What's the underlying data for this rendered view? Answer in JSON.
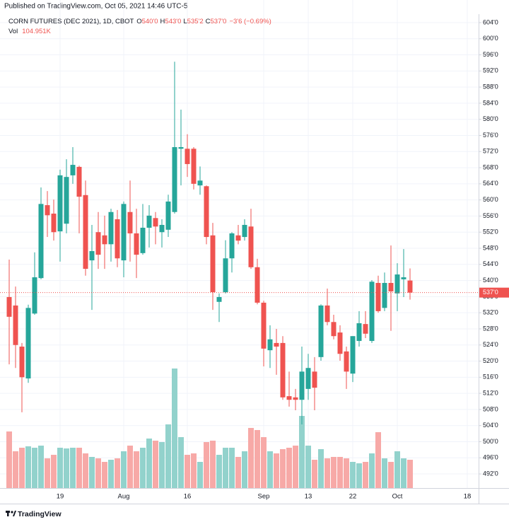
{
  "header": {
    "published": "Published on TradingView.com, Oct 05, 2021 14:46 UTC-5"
  },
  "legend": {
    "symbol": "CORN FUTURES (DEC 2021), 1D, CBOT",
    "ohlc": [
      {
        "key": "O",
        "value": "540'0"
      },
      {
        "key": "H",
        "value": "543'0"
      },
      {
        "key": "L",
        "value": "535'2"
      },
      {
        "key": "C",
        "value": "537'0"
      }
    ],
    "change": "−3'6 (−0.69%)",
    "volume_key": "Vol",
    "volume_value": "104.951K"
  },
  "footer": {
    "brand": "TradingView"
  },
  "chart_data": {
    "type": "candlestick",
    "up_color": "#26a69a",
    "down_color": "#ef5350",
    "volume_up_color": "#92d2cc",
    "volume_down_color": "#f7a9a7",
    "grid": true,
    "categories": [
      null,
      null,
      null,
      null,
      null,
      null,
      null,
      null,
      "19",
      null,
      null,
      null,
      null,
      null,
      null,
      null,
      null,
      null,
      "Aug",
      null,
      null,
      null,
      null,
      null,
      null,
      null,
      null,
      null,
      "16",
      null,
      null,
      null,
      null,
      null,
      null,
      null,
      null,
      null,
      null,
      null,
      "Sep",
      null,
      null,
      null,
      null,
      null,
      null,
      "13",
      null,
      null,
      null,
      null,
      null,
      null,
      "22",
      null,
      null,
      null,
      null,
      null,
      null,
      "Oct",
      null,
      null,
      null,
      null,
      null,
      null,
      null,
      null,
      null,
      null,
      "18",
      null
    ],
    "open": [
      535.9,
      533.8,
      523.6,
      515.7,
      531.8,
      540.6,
      558.7,
      556.6,
      552.2,
      554.1,
      566.1,
      568.2,
      561.2,
      545,
      552,
      551.2,
      549,
      555.2,
      545,
      557,
      551.7,
      546.8,
      553.1,
      555.5,
      552,
      552.6,
      557,
      572.7,
      572.7,
      572.7,
      563.6,
      563.4,
      551.2,
      534.7,
      537.1,
      545.5,
      551.2,
      550.8,
      553.4,
      543.3,
      534.5,
      522.7,
      524.5,
      524.5,
      511.3,
      511,
      510.4,
      513.1,
      517.4,
      521,
      533.8,
      529.7,
      527.1,
      522.4,
      516.9,
      525,
      529.2,
      525,
      539.4,
      533.2,
      539.4,
      536.8,
      540.3,
      540,
      null,
      null,
      null,
      null,
      null,
      null,
      null,
      null,
      null,
      null
    ],
    "high": [
      545.2,
      538.5,
      524.5,
      534,
      547,
      563.1,
      562.2,
      560.1,
      567.5,
      570.1,
      573.1,
      568.5,
      564.8,
      553.8,
      557,
      556.1,
      557.8,
      557.5,
      559.6,
      564.8,
      557.8,
      559,
      558.7,
      557,
      555.2,
      561.3,
      594.3,
      582.4,
      576.3,
      573.1,
      568.3,
      563.6,
      554.3,
      536.8,
      550,
      552,
      553.8,
      555.2,
      557.8,
      545.4,
      535,
      528.9,
      528,
      526.2,
      517.4,
      513.1,
      523.6,
      521.8,
      521,
      534.1,
      538,
      531.5,
      528.9,
      523.6,
      526.2,
      532.4,
      532.4,
      540.1,
      541.2,
      542,
      548.7,
      544.3,
      547.8,
      543,
      null,
      null,
      null,
      null,
      null,
      null,
      null,
      null,
      null,
      null
    ],
    "low": [
      519.2,
      518.3,
      507.3,
      514.6,
      531.5,
      540.3,
      550.8,
      549.9,
      544.7,
      551.7,
      564,
      551.7,
      541.2,
      532.7,
      542.9,
      542.9,
      544.7,
      543.3,
      540.8,
      544.7,
      540.6,
      546.4,
      548.2,
      549,
      548.2,
      550.8,
      556.6,
      563.6,
      565.7,
      562.6,
      561.3,
      549,
      532.7,
      529.7,
      536.8,
      542,
      549,
      549.9,
      542.9,
      534.1,
      518.7,
      518.3,
      516.6,
      510.4,
      508.7,
      507.8,
      504.3,
      510.4,
      507.8,
      520.1,
      528.9,
      525.4,
      520.1,
      513.1,
      514.8,
      523.6,
      525.7,
      524.5,
      532,
      532.4,
      527.5,
      532.4,
      535.9,
      535.25,
      null,
      null,
      null,
      null,
      null,
      null,
      null,
      null,
      null,
      null
    ],
    "close": [
      531,
      524,
      516,
      533.2,
      540.8,
      559,
      556.2,
      552,
      566.1,
      565.7,
      568.7,
      560.8,
      542.9,
      547.3,
      546.4,
      549,
      557,
      545.5,
      559,
      551.7,
      546.4,
      553.1,
      556.1,
      553.4,
      553.8,
      559.6,
      573.1,
      573.1,
      568.9,
      564,
      564.8,
      550.8,
      537.1,
      535.9,
      545.5,
      551.7,
      549.9,
      553.8,
      543.3,
      534.5,
      523.1,
      525.4,
      523.6,
      511,
      510.4,
      510.4,
      517.4,
      518.3,
      513.4,
      533.8,
      529.7,
      526.2,
      521.8,
      517.4,
      526.2,
      529.4,
      526.8,
      539.7,
      532.4,
      539.4,
      537.3,
      541.5,
      540.8,
      537,
      null,
      null,
      null,
      null,
      null,
      null,
      null,
      null,
      null,
      null
    ],
    "volume": [
      209.9,
      136.4,
      149.6,
      154.8,
      149.6,
      157.4,
      110.2,
      123.3,
      149.6,
      146.9,
      149.6,
      149.6,
      128.6,
      115.5,
      110.2,
      97.1,
      105,
      110.2,
      136.4,
      157.4,
      136.4,
      149.6,
      183.7,
      175.8,
      170.6,
      236.2,
      443.5,
      188.9,
      123.3,
      128.6,
      97.1,
      170.6,
      175.8,
      123.3,
      149.6,
      149.6,
      115.5,
      136.4,
      223,
      215.2,
      188.9,
      136.4,
      128.6,
      144.3,
      149.6,
      157.4,
      267.6,
      157.4,
      105,
      144.3,
      110.2,
      115.5,
      115.5,
      110.2,
      97.1,
      91.8,
      97.1,
      128.6,
      207.3,
      110.2,
      97.1,
      136.4,
      110.2,
      104.951,
      null,
      null,
      null,
      null,
      null,
      null,
      null,
      null,
      null,
      null
    ],
    "last_price": {
      "value": 537,
      "label": "537'0"
    },
    "ylim": [
      488.5,
      606.1
    ],
    "yticks": [
      {
        "value": 604,
        "label": "604'0"
      },
      {
        "value": 600,
        "label": "600'0"
      },
      {
        "value": 596,
        "label": "596'0"
      },
      {
        "value": 592,
        "label": "592'0"
      },
      {
        "value": 588,
        "label": "588'0"
      },
      {
        "value": 584,
        "label": "584'0"
      },
      {
        "value": 580,
        "label": "580'0"
      },
      {
        "value": 576,
        "label": "576'0"
      },
      {
        "value": 572,
        "label": "572'0"
      },
      {
        "value": 568,
        "label": "568'0"
      },
      {
        "value": 564,
        "label": "564'0"
      },
      {
        "value": 560,
        "label": "560'0"
      },
      {
        "value": 556,
        "label": "556'0"
      },
      {
        "value": 552,
        "label": "552'0"
      },
      {
        "value": 548,
        "label": "548'0"
      },
      {
        "value": 544,
        "label": "544'0"
      },
      {
        "value": 540,
        "label": "540'0"
      },
      {
        "value": 536,
        "label": "536'0"
      },
      {
        "value": 532,
        "label": "532'0"
      },
      {
        "value": 528,
        "label": "528'0"
      },
      {
        "value": 524,
        "label": "524'0"
      },
      {
        "value": 520,
        "label": "520'0"
      },
      {
        "value": 516,
        "label": "516'0"
      },
      {
        "value": 512,
        "label": "512'0"
      },
      {
        "value": 508,
        "label": "508'0"
      },
      {
        "value": 504,
        "label": "504'0"
      },
      {
        "value": 500,
        "label": "500'0"
      },
      {
        "value": 496,
        "label": "496'0"
      },
      {
        "value": 492,
        "label": "492'0"
      }
    ]
  }
}
